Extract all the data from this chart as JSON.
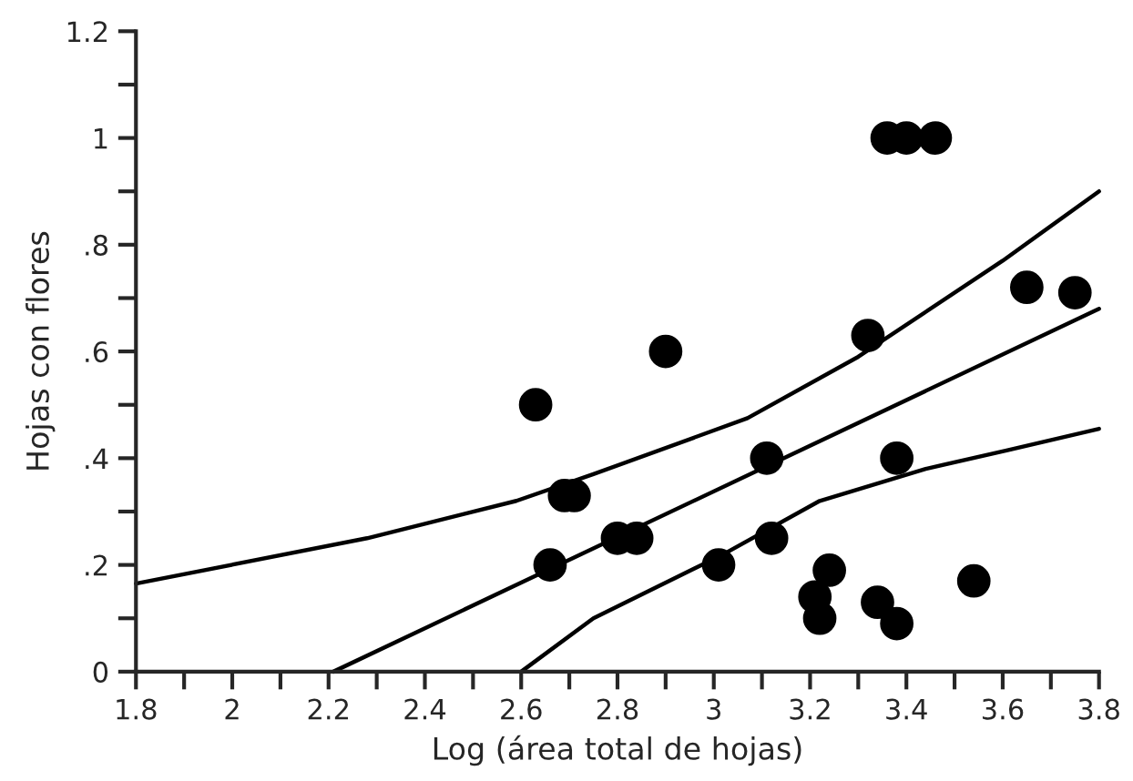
{
  "chart_data": {
    "type": "scatter",
    "xlabel": "Log (área total de hojas)",
    "ylabel": "Hojas con flores",
    "xlim": [
      1.8,
      3.8
    ],
    "ylim": [
      0,
      1.2
    ],
    "xticks": [
      1.8,
      {
        "value": 1.9,
        "label": null
      },
      2,
      {
        "value": 2.1,
        "label": null
      },
      2.2,
      {
        "value": 2.3,
        "label": null
      },
      2.4,
      {
        "value": 2.5,
        "label": null
      },
      2.6,
      {
        "value": 2.7,
        "label": null
      },
      2.8,
      {
        "value": 2.9,
        "label": null
      },
      3,
      {
        "value": 3.1,
        "label": null
      },
      3.2,
      {
        "value": 3.3,
        "label": null
      },
      3.4,
      {
        "value": 3.5,
        "label": null
      },
      3.6,
      {
        "value": 3.7,
        "label": null
      },
      3.8
    ],
    "yticks": [
      0,
      {
        "value": 0.1,
        "label": null
      },
      {
        "value": 0.2,
        "label": ".2"
      },
      {
        "value": 0.3,
        "label": null
      },
      {
        "value": 0.4,
        "label": ".4"
      },
      {
        "value": 0.5,
        "label": null
      },
      {
        "value": 0.6,
        "label": ".6"
      },
      {
        "value": 0.7,
        "label": null
      },
      {
        "value": 0.8,
        "label": ".8"
      },
      {
        "value": 0.9,
        "label": null
      },
      1,
      {
        "value": 1.1,
        "label": null
      },
      1.2
    ],
    "grid": false,
    "legend": false,
    "series": [
      {
        "color": "#000000",
        "marker": "circle",
        "x": [
          2.63,
          2.69,
          2.71,
          2.66,
          2.8,
          2.84,
          2.9,
          3.01,
          3.11,
          3.12,
          3.21,
          3.22,
          3.24,
          3.32,
          3.34,
          3.38,
          3.38,
          3.36,
          3.4,
          3.46,
          3.54,
          3.65,
          3.75
        ],
        "values": [
          0.5,
          0.33,
          0.33,
          0.2,
          0.25,
          0.25,
          0.6,
          0.2,
          0.4,
          0.25,
          0.14,
          0.1,
          0.19,
          0.63,
          0.13,
          0.09,
          0.4,
          1.0,
          1.0,
          1.0,
          0.17,
          0.72,
          0.71
        ]
      },
      {
        "type": "line",
        "color": "#000000",
        "marker": "none",
        "line_style": "solid",
        "x": [
          2.21,
          3.8
        ],
        "values": [
          0,
          0.68
        ]
      },
      {
        "type": "line",
        "color": "#000000",
        "marker": "none",
        "line_style": "solid",
        "x": [
          1.8,
          2.28,
          2.59,
          2.75,
          3.07,
          3.3,
          3.6,
          3.8
        ],
        "values": [
          0.165,
          0.25,
          0.32,
          0.37,
          0.475,
          0.59,
          0.77,
          0.9
        ]
      },
      {
        "type": "line",
        "color": "#000000",
        "marker": "none",
        "line_style": "solid",
        "x": [
          2.6,
          2.75,
          3.02,
          3.22,
          3.44,
          3.61,
          3.8
        ],
        "values": [
          0,
          0.1,
          0.22,
          0.32,
          0.38,
          0.415,
          0.455
        ]
      }
    ]
  }
}
